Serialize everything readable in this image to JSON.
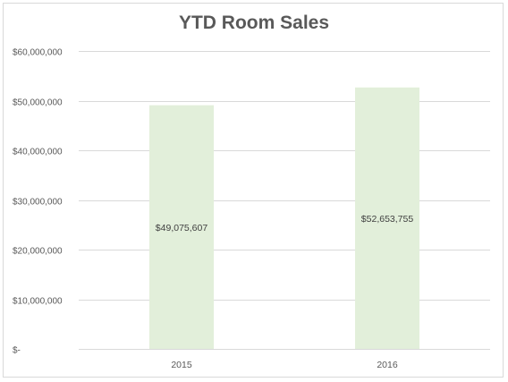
{
  "chart_data": {
    "type": "bar",
    "title": "YTD Room Sales",
    "xlabel": "",
    "ylabel": "",
    "categories": [
      "2015",
      "2016"
    ],
    "values": [
      49075607,
      52653755
    ],
    "value_labels": [
      "$49,075,607",
      "$52,653,755"
    ],
    "ylim": [
      0,
      60000000
    ],
    "yticks": [
      0,
      10000000,
      20000000,
      30000000,
      40000000,
      50000000,
      60000000
    ],
    "ytick_labels": [
      "$-",
      "$10,000,000",
      "$20,000,000",
      "$30,000,000",
      "$40,000,000",
      "$50,000,000",
      "$60,000,000"
    ],
    "grid": true,
    "legend": "none",
    "colors": {
      "bar": "#e2efda",
      "grid": "#d9d9d9",
      "text": "#595959",
      "label": "#404040"
    }
  }
}
